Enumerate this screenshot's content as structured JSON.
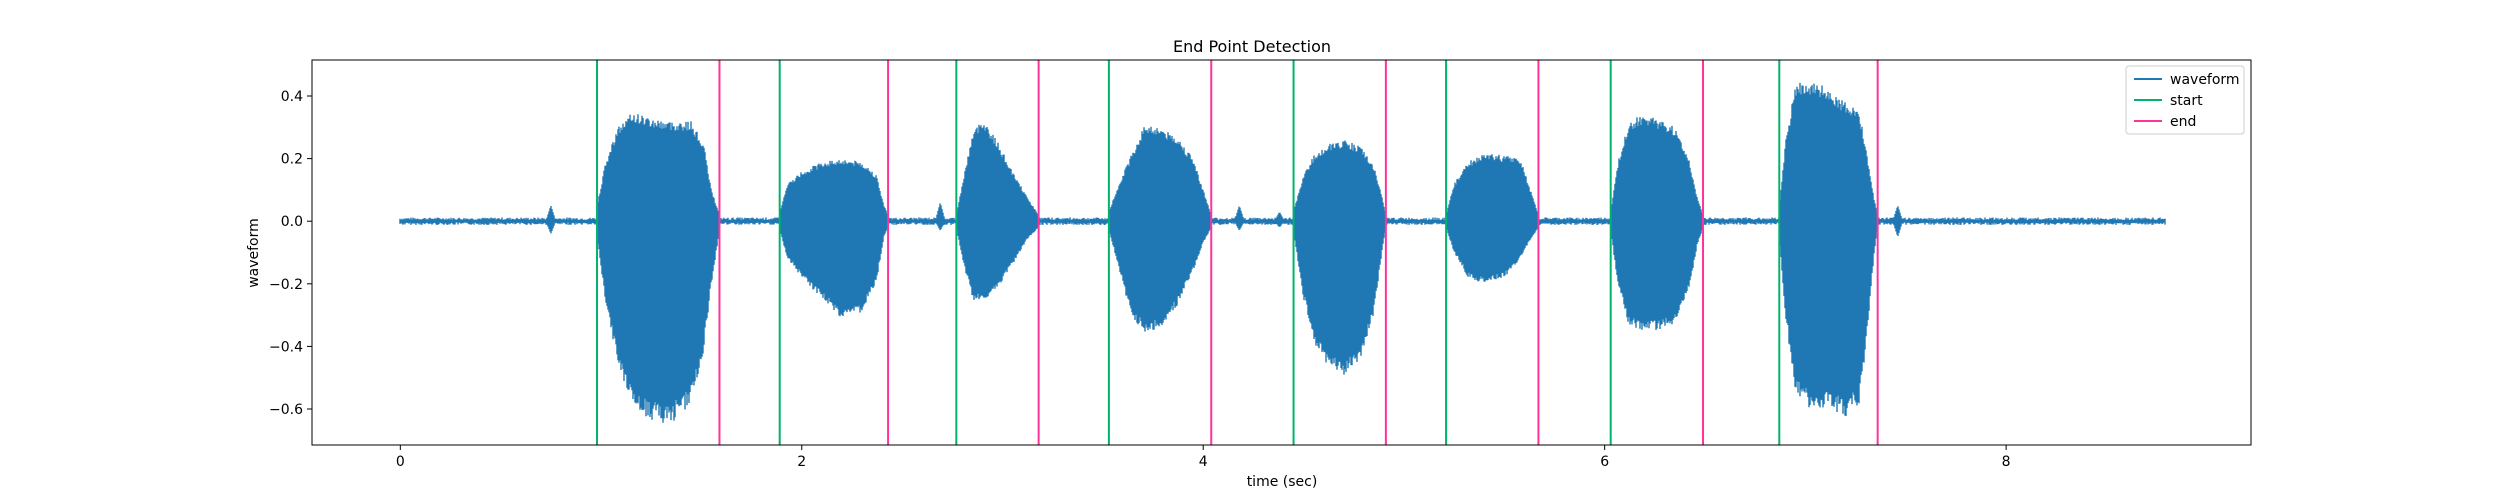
{
  "chart_data": {
    "type": "line",
    "title": "End Point Detection",
    "xlabel": "time (sec)",
    "ylabel": "waveform",
    "xlim": [
      -0.44,
      9.22
    ],
    "ylim": [
      -0.715,
      0.515
    ],
    "xticks": [
      0,
      2,
      4,
      6,
      8
    ],
    "yticks": [
      0.4,
      0.2,
      0.0,
      -0.2,
      -0.4,
      -0.6
    ],
    "xtick_labels": [
      "0",
      "2",
      "4",
      "6",
      "8"
    ],
    "ytick_labels": [
      "0.4",
      "0.2",
      "0.0",
      "−0.2",
      "−0.4",
      "−0.6"
    ],
    "grid": false,
    "legend_position": "top-right",
    "waveform_duration": 8.79,
    "noise_level": 0.008,
    "series": [
      {
        "name": "waveform",
        "color": "#1f77b4"
      },
      {
        "name": "start",
        "color": "#00b36b"
      },
      {
        "name": "end",
        "color": "#ff3399"
      }
    ],
    "start_times": [
      0.98,
      1.89,
      2.77,
      3.53,
      4.45,
      5.21,
      6.03,
      6.87
    ],
    "end_times": [
      1.59,
      2.43,
      3.18,
      4.04,
      4.91,
      5.67,
      6.49,
      7.36
    ],
    "segments": [
      {
        "start": 0.98,
        "end": 1.59,
        "upper": [
          [
            0.98,
            0.05
          ],
          [
            1.02,
            0.18
          ],
          [
            1.08,
            0.3
          ],
          [
            1.16,
            0.35
          ],
          [
            1.25,
            0.33
          ],
          [
            1.35,
            0.32
          ],
          [
            1.45,
            0.32
          ],
          [
            1.51,
            0.25
          ],
          [
            1.55,
            0.1
          ],
          [
            1.59,
            0.02
          ]
        ],
        "lower": [
          [
            0.98,
            -0.05
          ],
          [
            1.02,
            -0.25
          ],
          [
            1.08,
            -0.45
          ],
          [
            1.16,
            -0.6
          ],
          [
            1.25,
            -0.64
          ],
          [
            1.35,
            -0.65
          ],
          [
            1.45,
            -0.58
          ],
          [
            1.51,
            -0.42
          ],
          [
            1.55,
            -0.2
          ],
          [
            1.59,
            -0.03
          ]
        ]
      },
      {
        "start": 1.89,
        "end": 2.43,
        "upper": [
          [
            1.89,
            0.03
          ],
          [
            1.93,
            0.12
          ],
          [
            2.0,
            0.16
          ],
          [
            2.1,
            0.19
          ],
          [
            2.2,
            0.2
          ],
          [
            2.3,
            0.19
          ],
          [
            2.37,
            0.15
          ],
          [
            2.41,
            0.05
          ],
          [
            2.43,
            0.02
          ]
        ],
        "lower": [
          [
            1.89,
            -0.03
          ],
          [
            1.93,
            -0.12
          ],
          [
            2.0,
            -0.18
          ],
          [
            2.1,
            -0.25
          ],
          [
            2.2,
            -0.31
          ],
          [
            2.3,
            -0.29
          ],
          [
            2.37,
            -0.2
          ],
          [
            2.41,
            -0.05
          ],
          [
            2.43,
            -0.02
          ]
        ]
      },
      {
        "start": 2.77,
        "end": 3.18,
        "upper": [
          [
            2.77,
            0.02
          ],
          [
            2.8,
            0.12
          ],
          [
            2.85,
            0.28
          ],
          [
            2.9,
            0.33
          ],
          [
            2.97,
            0.26
          ],
          [
            3.05,
            0.16
          ],
          [
            3.12,
            0.08
          ],
          [
            3.18,
            0.02
          ]
        ],
        "lower": [
          [
            2.77,
            -0.02
          ],
          [
            2.8,
            -0.12
          ],
          [
            2.85,
            -0.25
          ],
          [
            2.9,
            -0.26
          ],
          [
            2.97,
            -0.22
          ],
          [
            3.05,
            -0.14
          ],
          [
            3.12,
            -0.06
          ],
          [
            3.18,
            -0.02
          ]
        ]
      },
      {
        "start": 3.53,
        "end": 4.04,
        "upper": [
          [
            3.53,
            0.03
          ],
          [
            3.58,
            0.12
          ],
          [
            3.64,
            0.21
          ],
          [
            3.71,
            0.31
          ],
          [
            3.79,
            0.3
          ],
          [
            3.87,
            0.27
          ],
          [
            3.95,
            0.2
          ],
          [
            4.0,
            0.1
          ],
          [
            4.04,
            0.02
          ]
        ],
        "lower": [
          [
            3.53,
            -0.03
          ],
          [
            3.58,
            -0.15
          ],
          [
            3.64,
            -0.3
          ],
          [
            3.71,
            -0.36
          ],
          [
            3.79,
            -0.34
          ],
          [
            3.87,
            -0.27
          ],
          [
            3.95,
            -0.16
          ],
          [
            4.0,
            -0.07
          ],
          [
            4.04,
            -0.02
          ]
        ]
      },
      {
        "start": 4.45,
        "end": 4.91,
        "upper": [
          [
            4.45,
            0.03
          ],
          [
            4.5,
            0.15
          ],
          [
            4.56,
            0.22
          ],
          [
            4.63,
            0.25
          ],
          [
            4.7,
            0.26
          ],
          [
            4.78,
            0.24
          ],
          [
            4.85,
            0.18
          ],
          [
            4.89,
            0.08
          ],
          [
            4.91,
            0.02
          ]
        ],
        "lower": [
          [
            4.45,
            -0.03
          ],
          [
            4.5,
            -0.25
          ],
          [
            4.56,
            -0.4
          ],
          [
            4.63,
            -0.47
          ],
          [
            4.7,
            -0.5
          ],
          [
            4.78,
            -0.45
          ],
          [
            4.85,
            -0.3
          ],
          [
            4.89,
            -0.1
          ],
          [
            4.91,
            -0.02
          ]
        ]
      },
      {
        "start": 5.21,
        "end": 5.67,
        "upper": [
          [
            5.21,
            0.02
          ],
          [
            5.25,
            0.12
          ],
          [
            5.32,
            0.19
          ],
          [
            5.4,
            0.22
          ],
          [
            5.5,
            0.21
          ],
          [
            5.58,
            0.2
          ],
          [
            5.63,
            0.1
          ],
          [
            5.67,
            0.02
          ]
        ],
        "lower": [
          [
            5.21,
            -0.02
          ],
          [
            5.25,
            -0.1
          ],
          [
            5.32,
            -0.18
          ],
          [
            5.4,
            -0.2
          ],
          [
            5.5,
            -0.18
          ],
          [
            5.58,
            -0.12
          ],
          [
            5.63,
            -0.06
          ],
          [
            5.67,
            -0.02
          ]
        ]
      },
      {
        "start": 6.03,
        "end": 6.49,
        "upper": [
          [
            6.03,
            0.03
          ],
          [
            6.07,
            0.2
          ],
          [
            6.12,
            0.32
          ],
          [
            6.18,
            0.34
          ],
          [
            6.26,
            0.33
          ],
          [
            6.35,
            0.3
          ],
          [
            6.42,
            0.2
          ],
          [
            6.46,
            0.08
          ],
          [
            6.49,
            0.02
          ]
        ],
        "lower": [
          [
            6.03,
            -0.03
          ],
          [
            6.07,
            -0.22
          ],
          [
            6.12,
            -0.33
          ],
          [
            6.18,
            -0.35
          ],
          [
            6.26,
            -0.35
          ],
          [
            6.35,
            -0.33
          ],
          [
            6.42,
            -0.22
          ],
          [
            6.46,
            -0.08
          ],
          [
            6.49,
            -0.02
          ]
        ]
      },
      {
        "start": 6.87,
        "end": 7.36,
        "upper": [
          [
            6.87,
            0.05
          ],
          [
            6.9,
            0.25
          ],
          [
            6.95,
            0.44
          ],
          [
            7.02,
            0.45
          ],
          [
            7.1,
            0.43
          ],
          [
            7.2,
            0.38
          ],
          [
            7.27,
            0.35
          ],
          [
            7.31,
            0.2
          ],
          [
            7.34,
            0.08
          ],
          [
            7.36,
            0.02
          ]
        ],
        "lower": [
          [
            6.87,
            -0.05
          ],
          [
            6.9,
            -0.3
          ],
          [
            6.95,
            -0.55
          ],
          [
            7.02,
            -0.6
          ],
          [
            7.1,
            -0.6
          ],
          [
            7.2,
            -0.63
          ],
          [
            7.27,
            -0.58
          ],
          [
            7.31,
            -0.35
          ],
          [
            7.34,
            -0.12
          ],
          [
            7.36,
            -0.02
          ]
        ]
      }
    ],
    "blips": [
      {
        "t": 0.75,
        "up": 0.05,
        "down": -0.04
      },
      {
        "t": 2.69,
        "up": 0.06,
        "down": -0.03
      },
      {
        "t": 4.18,
        "up": 0.05,
        "down": -0.03
      },
      {
        "t": 4.38,
        "up": 0.03,
        "down": -0.02
      },
      {
        "t": 7.46,
        "up": 0.05,
        "down": -0.05
      }
    ]
  }
}
